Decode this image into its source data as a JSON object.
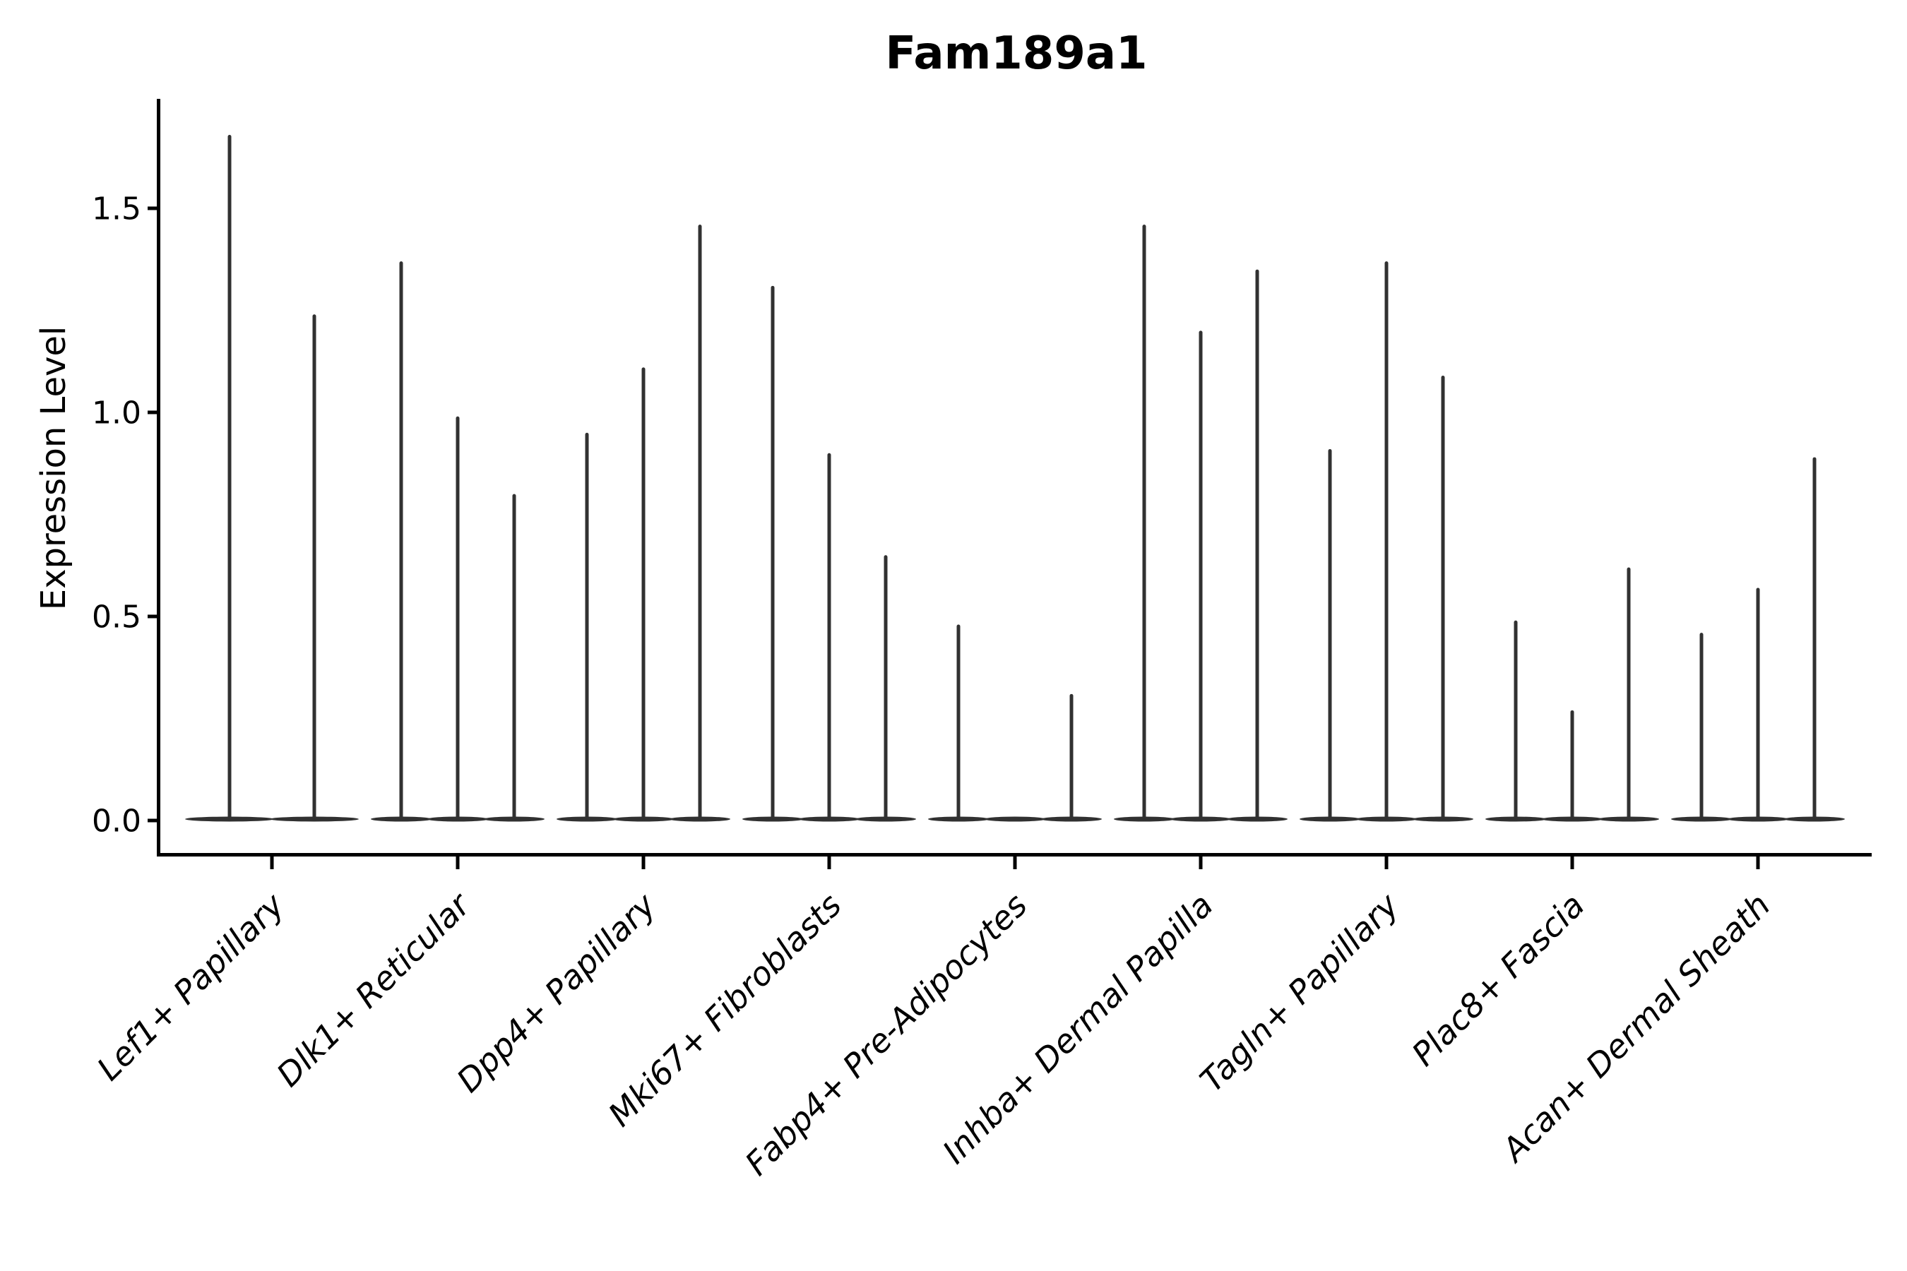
{
  "title": "Fam189a1",
  "chart_data": {
    "type": "violin",
    "title": "Fam189a1",
    "xlabel": "",
    "ylabel": "Expression Level",
    "ylim": [
      0,
      1.76
    ],
    "yticks": [
      0,
      0.5,
      1.0,
      1.5
    ],
    "ytick_labels": [
      "0.0",
      "0.5",
      "1.0",
      "1.5"
    ],
    "grid": false,
    "legend_position": "none",
    "x_tick_rotation_deg": 45,
    "shape_note": "extremely narrow violins: dense flat base at expression 0 with a thin vertical spike up to the max expression value; one violin per group within each category",
    "categories": [
      "Lef1+ Papillary",
      "Dlk1+ Reticular",
      "Dpp4+ Papillary",
      "Mki67+ Fibroblasts",
      "Fabp4+ Pre-Adipocytes",
      "Inhba+ Dermal Papilla",
      "Tagln+ Papillary",
      "Plac8+ Fascia",
      "Acan+ Dermal Sheath"
    ],
    "series": [
      {
        "category": "Lef1+ Papillary",
        "violin_max_values": [
          1.68,
          1.24
        ]
      },
      {
        "category": "Dlk1+ Reticular",
        "violin_max_values": [
          1.37,
          0.99,
          0.8
        ]
      },
      {
        "category": "Dpp4+ Papillary",
        "violin_max_values": [
          0.95,
          1.11,
          1.46
        ]
      },
      {
        "category": "Mki67+ Fibroblasts",
        "violin_max_values": [
          1.31,
          0.9,
          0.65
        ]
      },
      {
        "category": "Fabp4+ Pre-Adipocytes",
        "violin_max_values": [
          0.48,
          0.0,
          0.31
        ]
      },
      {
        "category": "Inhba+ Dermal Papilla",
        "violin_max_values": [
          1.46,
          1.2,
          1.35
        ]
      },
      {
        "category": "Tagln+ Papillary",
        "violin_max_values": [
          0.91,
          1.37,
          1.09
        ]
      },
      {
        "category": "Plac8+ Fascia",
        "violin_max_values": [
          0.49,
          0.27,
          0.62
        ]
      },
      {
        "category": "Acan+ Dermal Sheath",
        "violin_max_values": [
          0.46,
          0.57,
          0.89
        ]
      }
    ],
    "colors": {
      "violin": "#313131",
      "axis": "#000000",
      "text": "#000000",
      "background": "#ffffff"
    }
  }
}
